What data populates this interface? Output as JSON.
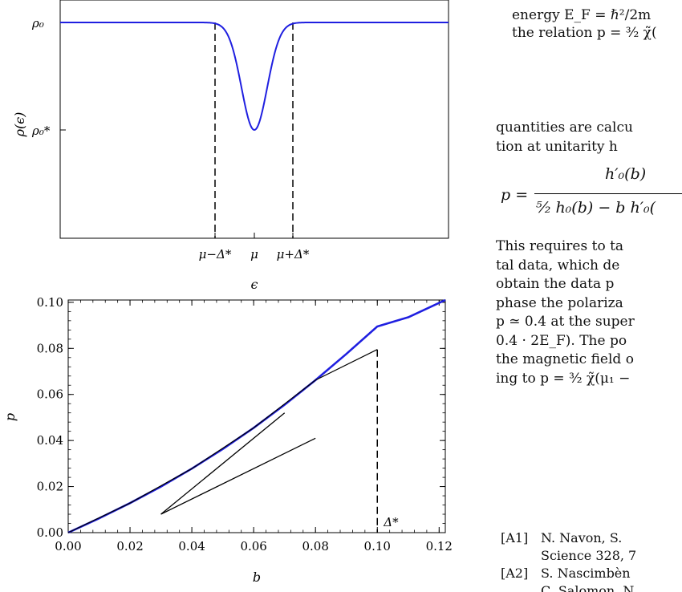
{
  "text": {
    "line1": "energy E_F = ℏ²/2m",
    "line2": "the relation p = ³⁄₂ χ̃(",
    "line3": "quantities are calcu",
    "line4": "tion at unitarity h",
    "eq_lhs": "p =",
    "eq_num": "h′₀(b)",
    "eq_den": "⁵⁄₂ h₀(b) − b h′₀(",
    "para": [
      "This requires to ta",
      "tal data, which de",
      "obtain the data p",
      "phase the polariza",
      "p ≃ 0.4 at the super",
      "0.4 · 2E_F). The po",
      "the magnetic field o",
      "ing to p = ³⁄₂ χ̃(μ₁ −"
    ],
    "refs": [
      {
        "tag": "[A1]",
        "line1": "N. Navon, S. ",
        "line2": "Science 328, 7"
      },
      {
        "tag": "[A2]",
        "line1": "S. Nascimbèn",
        "line2": "C. Salomon, N"
      }
    ]
  },
  "chart_data": [
    {
      "type": "line",
      "ylabel": "ρ(ϵ)",
      "xlabel": "ϵ",
      "y_ticks": [
        "ρ₀",
        "ρ₀*"
      ],
      "x_ticks": [
        "μ−Δ*",
        "μ",
        "μ+Δ*"
      ],
      "series": [
        {
          "color": "#1f1fe0",
          "shape": "gaussian-dip",
          "baseline": "ρ₀",
          "minimum": "ρ₀*",
          "center": "μ",
          "width": "Δ*"
        }
      ],
      "vlines": [
        "μ−Δ*",
        "μ+Δ*"
      ],
      "vline_style": "dashed"
    },
    {
      "type": "line",
      "xlabel": "b",
      "ylabel": "p",
      "xlim": [
        0,
        0.122
      ],
      "ylim": [
        0,
        0.101
      ],
      "x_ticks": [
        "0.00",
        "0.02",
        "0.04",
        "0.06",
        "0.08",
        "0.10",
        "0.12"
      ],
      "y_ticks": [
        "0.00",
        "0.02",
        "0.04",
        "0.06",
        "0.08",
        "0.10"
      ],
      "series": [
        {
          "color": "#1f1fe0",
          "x": [
            0,
            0.01,
            0.02,
            0.03,
            0.04,
            0.05,
            0.06,
            0.07,
            0.08,
            0.09,
            0.1,
            0.11,
            0.122
          ],
          "y": [
            0,
            0.0062,
            0.0128,
            0.02,
            0.0278,
            0.0363,
            0.0455,
            0.0555,
            0.0662,
            0.0776,
            0.0895,
            0.0935,
            0.101
          ]
        }
      ],
      "black_curve": {
        "x": [
          0.0,
          0.02,
          0.04,
          0.06,
          0.08,
          0.1
        ],
        "y": [
          0.0,
          0.0128,
          0.0278,
          0.0455,
          0.0662,
          0.0795
        ]
      },
      "tangent_lines": [
        {
          "x": [
            0.03,
            0.08
          ],
          "y": [
            0.008,
            0.041
          ]
        },
        {
          "x": [
            0.03,
            0.07
          ],
          "y": [
            0.008,
            0.052
          ]
        }
      ],
      "vline": {
        "x": 0.1,
        "label": "Δ*",
        "style": "dashed"
      }
    }
  ]
}
